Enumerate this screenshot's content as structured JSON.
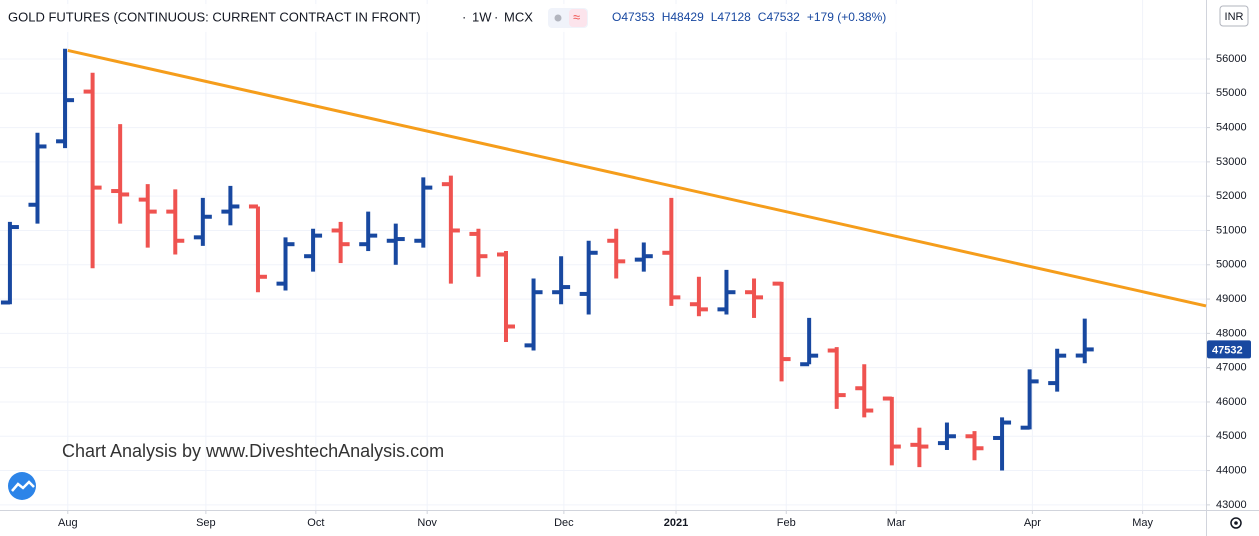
{
  "header": {
    "symbol": "GOLD FUTURES (CONTINUOUS: CURRENT CONTRACT IN FRONT)",
    "interval": "1W",
    "exchange": "MCX",
    "legend": [
      "O47353",
      "H48429",
      "L47128",
      "C47532",
      "+179 (+0.38%)"
    ],
    "currency": "INR"
  },
  "chart_data": {
    "type": "ohlc",
    "watermark": "Chart Analysis by www.DiveshtechAnalysis.com",
    "up_color": "#1848a0",
    "down_color": "#ef5350",
    "xlim": [
      -0.36,
      43.4
    ],
    "ylim": [
      42850,
      57720
    ],
    "xticks": [
      {
        "value": 2.1,
        "label": "Aug"
      },
      {
        "value": 7.11,
        "label": "Sep"
      },
      {
        "value": 11.1,
        "label": "Oct"
      },
      {
        "value": 15.14,
        "label": "Nov"
      },
      {
        "value": 20.1,
        "label": "Dec"
      },
      {
        "value": 24.17,
        "label": "2021"
      },
      {
        "value": 28.17,
        "label": "Feb"
      },
      {
        "value": 32.16,
        "label": "Mar"
      },
      {
        "value": 37.1,
        "label": "Apr"
      },
      {
        "value": 41.1,
        "label": "May"
      }
    ],
    "yticks": [
      43000,
      44000,
      45000,
      46000,
      47000,
      48000,
      49000,
      50000,
      51000,
      52000,
      53000,
      54000,
      55000,
      56000
    ],
    "grid": true,
    "ohlc": {
      "open": [
        48900,
        51750,
        53600,
        55050,
        52150,
        51900,
        51550,
        50800,
        51550,
        51700,
        49450,
        50250,
        51000,
        50600,
        50700,
        50700,
        52350,
        50900,
        50300,
        47650,
        49200,
        49150,
        50700,
        50150,
        50350,
        48850,
        48700,
        49200,
        49450,
        47100,
        47500,
        46400,
        46100,
        44750,
        44800,
        45000,
        44950,
        45250,
        46550,
        47353
      ],
      "high": [
        51250,
        53850,
        56300,
        55600,
        54100,
        52350,
        52200,
        51950,
        52300,
        51700,
        50800,
        51050,
        51250,
        51550,
        51200,
        52550,
        52600,
        51050,
        50400,
        49600,
        50250,
        50700,
        51050,
        50650,
        51950,
        49650,
        49850,
        49600,
        49500,
        48450,
        47600,
        47100,
        46150,
        45250,
        45400,
        45150,
        45550,
        46950,
        47550,
        48429
      ],
      "low": [
        48850,
        51200,
        53400,
        49900,
        51200,
        50500,
        50300,
        50550,
        51150,
        49200,
        49250,
        49800,
        50050,
        50400,
        50000,
        50500,
        49450,
        49650,
        47750,
        47500,
        48850,
        48550,
        49600,
        49800,
        48800,
        48500,
        48550,
        48450,
        46600,
        47100,
        45800,
        45550,
        44150,
        44100,
        44600,
        44300,
        44000,
        45200,
        46300,
        47128
      ],
      "close": [
        51100,
        53450,
        54800,
        52250,
        52050,
        51550,
        50700,
        51400,
        51700,
        49650,
        50600,
        50850,
        50600,
        50850,
        50750,
        52250,
        51000,
        50250,
        48200,
        49200,
        49350,
        50350,
        50100,
        50250,
        49050,
        48700,
        49200,
        49050,
        47250,
        47350,
        46200,
        45750,
        44700,
        44700,
        45000,
        44650,
        45400,
        46600,
        47350,
        47532
      ]
    },
    "trendline": {
      "x": [
        2.1,
        43.4
      ],
      "y": [
        56250,
        48800
      ],
      "color": "#f59d1b"
    }
  }
}
